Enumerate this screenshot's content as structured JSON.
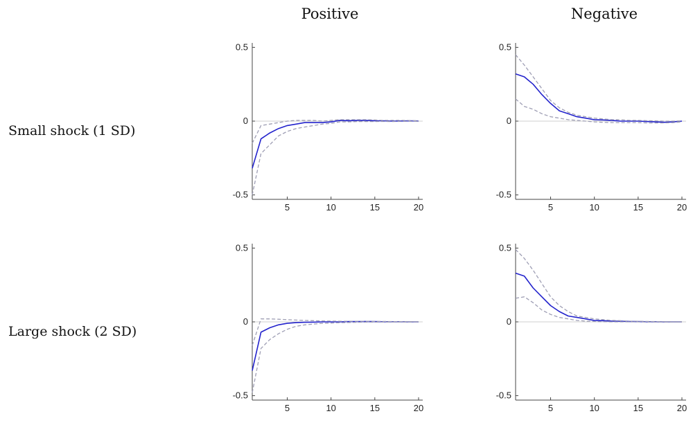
{
  "column_titles": [
    "Positive",
    "Negative"
  ],
  "row_titles": [
    "Small shock (1 SD)",
    "Large shock (2 SD)"
  ],
  "colors": {
    "irf": "#2222cc",
    "band": "#9e9eb4",
    "axis": "#444444",
    "zero_line": "#cfcfcf"
  },
  "chart_data": [
    {
      "type": "line",
      "row": "Small shock (1 SD)",
      "column": "Positive",
      "x": [
        1,
        2,
        3,
        4,
        5,
        6,
        7,
        8,
        9,
        10,
        11,
        12,
        13,
        14,
        15,
        16,
        17,
        18,
        19,
        20
      ],
      "series": [
        {
          "style": "solid",
          "values": [
            -0.32,
            -0.12,
            -0.08,
            -0.05,
            -0.03,
            -0.02,
            -0.01,
            -0.01,
            -0.01,
            -0.005,
            0.005,
            0.003,
            0.005,
            0.005,
            0.003,
            0.002,
            0.0,
            0.001,
            0.002,
            0.001
          ]
        },
        {
          "style": "dashed",
          "values": [
            -0.15,
            -0.03,
            -0.02,
            -0.01,
            0.0,
            0.005,
            0.005,
            0.005,
            0.0,
            0.005,
            0.01,
            0.01,
            0.01,
            0.01,
            0.008,
            0.005,
            0.005,
            0.005,
            0.004,
            0.002
          ]
        },
        {
          "style": "dashed",
          "values": [
            -0.5,
            -0.22,
            -0.16,
            -0.1,
            -0.07,
            -0.05,
            -0.04,
            -0.03,
            -0.02,
            -0.015,
            -0.005,
            -0.005,
            -0.003,
            -0.003,
            -0.003,
            -0.002,
            -0.003,
            -0.002,
            -0.001,
            -0.001
          ]
        }
      ],
      "xlim": [
        1,
        20
      ],
      "ylim": [
        -0.5,
        0.5
      ],
      "xticks": [
        5,
        10,
        15,
        20
      ],
      "yticks": [
        -0.5,
        0,
        0.5
      ],
      "xticklabels": [
        "5",
        "10",
        "15",
        "20"
      ],
      "yticklabels": [
        "-0.5",
        "0",
        "0.5"
      ]
    },
    {
      "type": "line",
      "row": "Small shock (1 SD)",
      "column": "Negative",
      "x": [
        1,
        2,
        3,
        4,
        5,
        6,
        7,
        8,
        9,
        10,
        11,
        12,
        13,
        14,
        15,
        16,
        17,
        18,
        19,
        20
      ],
      "series": [
        {
          "style": "solid",
          "values": [
            0.32,
            0.3,
            0.25,
            0.18,
            0.12,
            0.07,
            0.05,
            0.03,
            0.02,
            0.01,
            0.008,
            0.005,
            0.0,
            0.0,
            0.0,
            -0.003,
            -0.005,
            -0.008,
            -0.005,
            0.0
          ]
        },
        {
          "style": "dashed",
          "values": [
            0.45,
            0.38,
            0.3,
            0.22,
            0.14,
            0.09,
            0.06,
            0.04,
            0.03,
            0.02,
            0.015,
            0.01,
            0.01,
            0.005,
            0.005,
            0.003,
            0.002,
            0.0,
            0.0,
            0.002
          ]
        },
        {
          "style": "dashed",
          "values": [
            0.15,
            0.1,
            0.08,
            0.05,
            0.03,
            0.02,
            0.01,
            0.005,
            0.0,
            -0.005,
            -0.008,
            -0.01,
            -0.01,
            -0.01,
            -0.01,
            -0.012,
            -0.012,
            -0.012,
            -0.01,
            -0.005
          ]
        }
      ],
      "xlim": [
        1,
        20
      ],
      "ylim": [
        -0.5,
        0.5
      ],
      "xticks": [
        5,
        10,
        15,
        20
      ],
      "yticks": [
        -0.5,
        0,
        0.5
      ],
      "xticklabels": [
        "5",
        "10",
        "15",
        "20"
      ],
      "yticklabels": [
        "-0.5",
        "0",
        "0.5"
      ]
    },
    {
      "type": "line",
      "row": "Large shock (2 SD)",
      "column": "Positive",
      "x": [
        1,
        2,
        3,
        4,
        5,
        6,
        7,
        8,
        9,
        10,
        11,
        12,
        13,
        14,
        15,
        16,
        17,
        18,
        19,
        20
      ],
      "series": [
        {
          "style": "solid",
          "values": [
            -0.33,
            -0.07,
            -0.04,
            -0.02,
            -0.01,
            -0.005,
            -0.003,
            -0.002,
            0.0,
            0.0,
            0.0,
            0.002,
            0.002,
            0.003,
            0.002,
            0.001,
            0.001,
            0.001,
            0.0,
            0.0
          ]
        },
        {
          "style": "dashed",
          "values": [
            -0.16,
            0.02,
            0.02,
            0.018,
            0.015,
            0.012,
            0.01,
            0.008,
            0.006,
            0.005,
            0.004,
            0.004,
            0.004,
            0.004,
            0.003,
            0.003,
            0.002,
            0.002,
            0.002,
            0.001
          ]
        },
        {
          "style": "dashed",
          "values": [
            -0.48,
            -0.18,
            -0.12,
            -0.08,
            -0.05,
            -0.03,
            -0.02,
            -0.015,
            -0.01,
            -0.008,
            -0.005,
            -0.004,
            -0.003,
            -0.002,
            -0.002,
            -0.001,
            -0.001,
            -0.001,
            -0.001,
            0.0
          ]
        }
      ],
      "xlim": [
        1,
        20
      ],
      "ylim": [
        -0.5,
        0.5
      ],
      "xticks": [
        5,
        10,
        15,
        20
      ],
      "yticks": [
        -0.5,
        0,
        0.5
      ],
      "xticklabels": [
        "5",
        "10",
        "15",
        "20"
      ],
      "yticklabels": [
        "-0.5",
        "0",
        "0.5"
      ]
    },
    {
      "type": "line",
      "row": "Large shock (2 SD)",
      "column": "Negative",
      "x": [
        1,
        2,
        3,
        4,
        5,
        6,
        7,
        8,
        9,
        10,
        11,
        12,
        13,
        14,
        15,
        16,
        17,
        18,
        19,
        20
      ],
      "series": [
        {
          "style": "solid",
          "values": [
            0.33,
            0.31,
            0.23,
            0.17,
            0.11,
            0.07,
            0.04,
            0.03,
            0.02,
            0.01,
            0.008,
            0.005,
            0.004,
            0.003,
            0.002,
            0.001,
            0.001,
            0.0,
            0.0,
            0.0
          ]
        },
        {
          "style": "dashed",
          "values": [
            0.49,
            0.43,
            0.35,
            0.26,
            0.17,
            0.11,
            0.07,
            0.04,
            0.03,
            0.02,
            0.015,
            0.01,
            0.008,
            0.005,
            0.004,
            0.003,
            0.002,
            0.002,
            0.001,
            0.001
          ]
        },
        {
          "style": "dashed",
          "values": [
            0.16,
            0.17,
            0.13,
            0.08,
            0.05,
            0.03,
            0.02,
            0.01,
            0.005,
            0.003,
            0.001,
            0.0,
            0.0,
            0.0,
            0.0,
            -0.001,
            -0.001,
            -0.001,
            -0.001,
            -0.001
          ]
        }
      ],
      "xlim": [
        1,
        20
      ],
      "ylim": [
        -0.5,
        0.5
      ],
      "xticks": [
        5,
        10,
        15,
        20
      ],
      "yticks": [
        -0.5,
        0,
        0.5
      ],
      "xticklabels": [
        "5",
        "10",
        "15",
        "20"
      ],
      "yticklabels": [
        "-0.5",
        "0",
        "0.5"
      ]
    }
  ]
}
